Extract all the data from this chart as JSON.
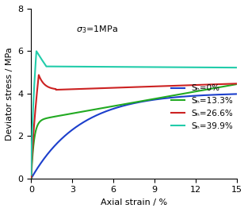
{
  "xlabel": "Axial strain / %",
  "ylabel": "Deviator stress / MPa",
  "xlim": [
    0,
    15
  ],
  "ylim": [
    0,
    8
  ],
  "xticks": [
    0,
    3,
    6,
    9,
    12,
    15
  ],
  "yticks": [
    0,
    2,
    4,
    6,
    8
  ],
  "legend_labels": [
    "Sₕ=0%",
    "Sₕ=13.3%",
    "Sₕ=26.6%",
    "Sₕ=39.9%"
  ],
  "line_colors": [
    "#1c3fcc",
    "#22aa22",
    "#cc2222",
    "#22ccaa"
  ],
  "annotation": "σ₃=1MPa",
  "figsize": [
    3.13,
    2.67
  ],
  "dpi": 100
}
